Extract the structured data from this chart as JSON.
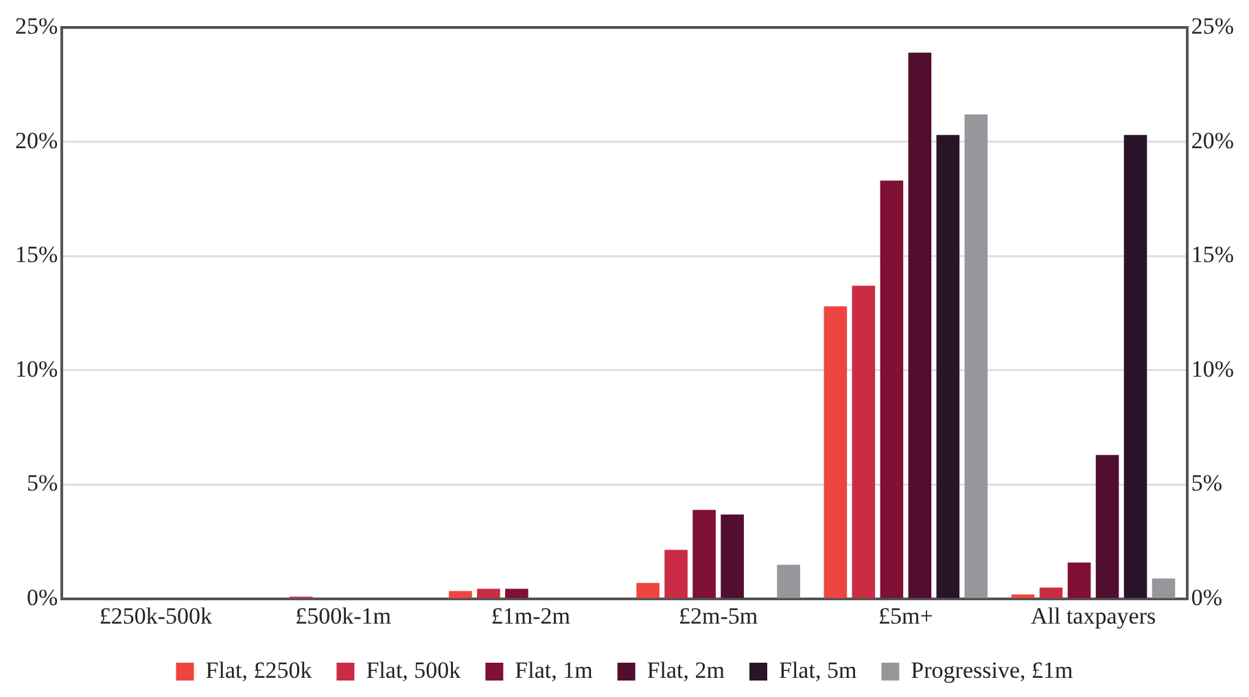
{
  "chart_data": {
    "type": "bar",
    "categories": [
      "£250k-500k",
      "£500k-1m",
      "£1m-2m",
      "£2m-5m",
      "£5m+",
      "All taxpayers"
    ],
    "series": [
      {
        "name": "Flat, £250k",
        "color": "#ef4540",
        "values": [
          0,
          0,
          0.35,
          0.7,
          12.8,
          0.2
        ]
      },
      {
        "name": "Flat, 500k",
        "color": "#cb2c45",
        "values": [
          0,
          0.1,
          0.45,
          2.15,
          13.7,
          0.5
        ]
      },
      {
        "name": "Flat, 1m",
        "color": "#7e1134",
        "values": [
          0,
          0,
          0.45,
          3.9,
          18.3,
          1.6
        ]
      },
      {
        "name": "Flat, 2m",
        "color": "#520e2e",
        "values": [
          0,
          0,
          0,
          3.7,
          23.9,
          6.3
        ]
      },
      {
        "name": "Flat, 5m",
        "color": "#2a1428",
        "values": [
          0,
          0,
          0,
          0,
          20.3,
          20.3
        ]
      },
      {
        "name": "Progressive, £1m",
        "color": "#96979b",
        "values": [
          0,
          0,
          0,
          1.5,
          21.2,
          0.9
        ]
      }
    ],
    "ylim": [
      0,
      25
    ],
    "yticks": [
      {
        "value": 0,
        "label": "0%"
      },
      {
        "value": 5,
        "label": "5%"
      },
      {
        "value": 10,
        "label": "10%"
      },
      {
        "value": 15,
        "label": "15%"
      },
      {
        "value": 20,
        "label": "20%"
      },
      {
        "value": 25,
        "label": "25%"
      }
    ],
    "y2lim": [
      0,
      25
    ],
    "y2ticks": [
      {
        "value": 0,
        "label": "0%"
      },
      {
        "value": 5,
        "label": "5%"
      },
      {
        "value": 10,
        "label": "10%"
      },
      {
        "value": 15,
        "label": "15%"
      },
      {
        "value": 20,
        "label": "20%"
      },
      {
        "value": 25,
        "label": "25%"
      }
    ],
    "grid": "y",
    "legend": "bottom"
  }
}
